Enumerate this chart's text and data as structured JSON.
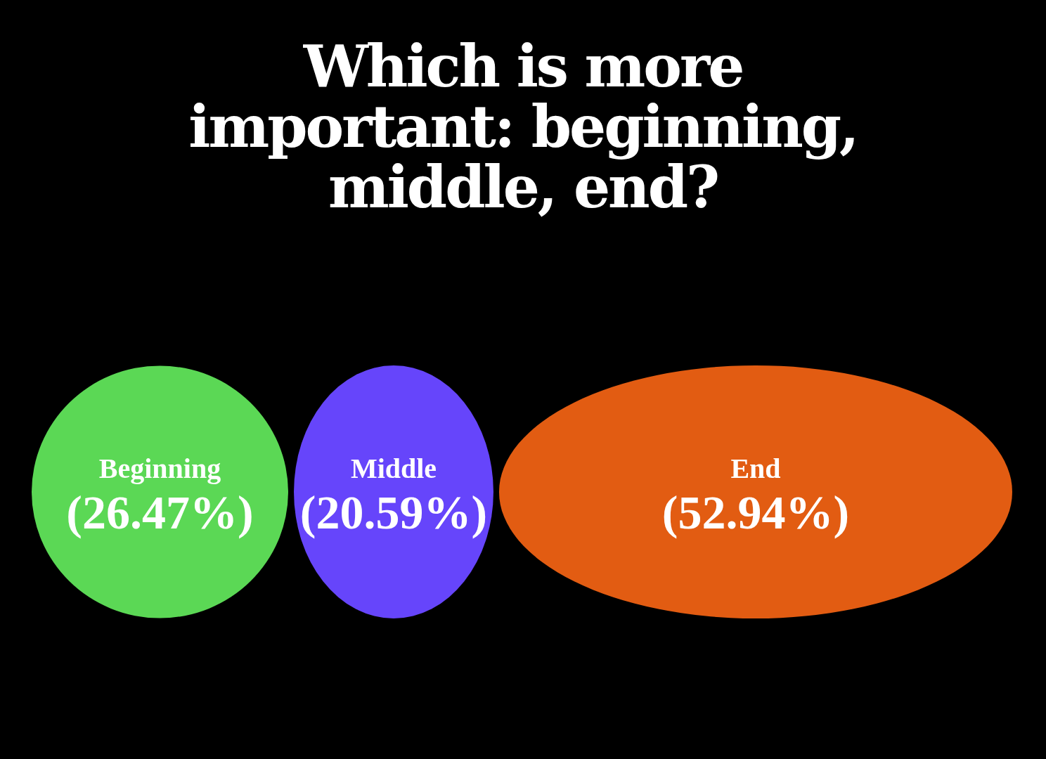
{
  "chart_data": {
    "type": "other",
    "title": "Which is more important: beginning, middle, end?",
    "categories": [
      "Beginning",
      "Middle",
      "End"
    ],
    "values": [
      26.47,
      20.59,
      52.94
    ],
    "value_labels": [
      "(26.47%)",
      "(20.59%)",
      "(52.94%)"
    ],
    "colors": [
      "#5bd855",
      "#6645fb",
      "#e25c12"
    ]
  }
}
